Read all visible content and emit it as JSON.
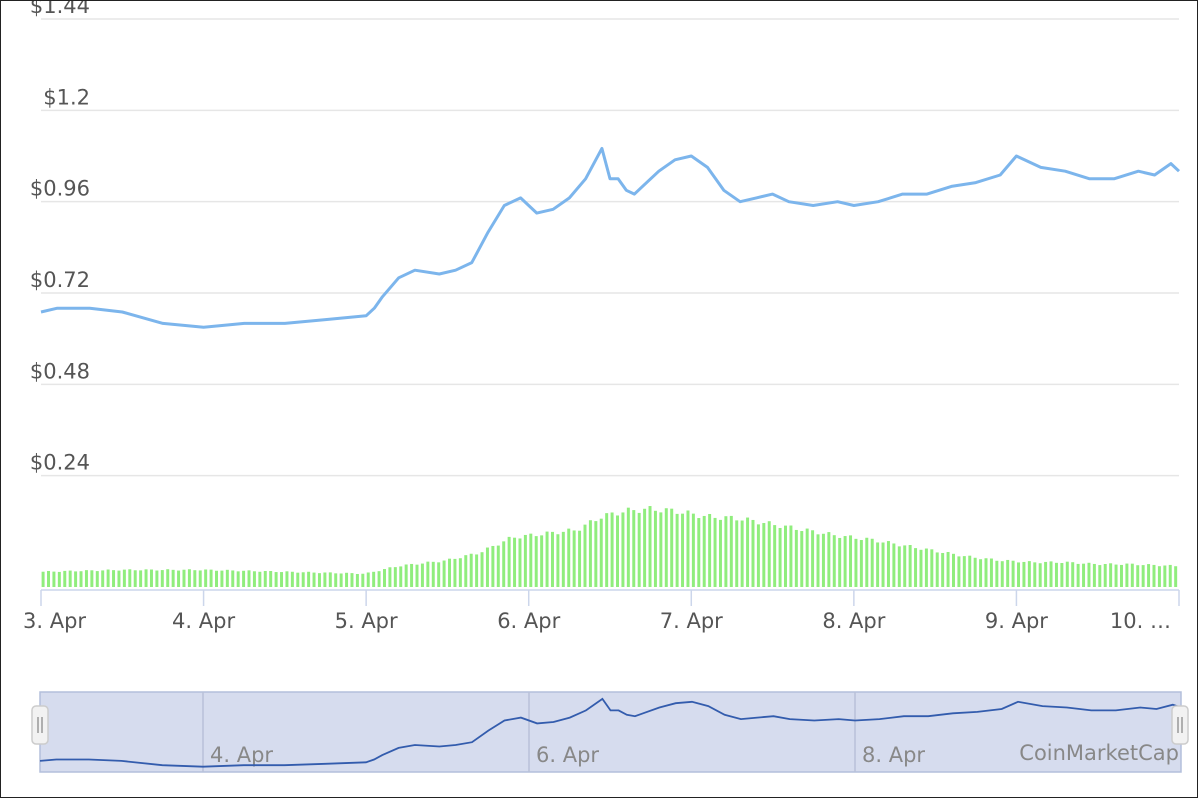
{
  "chart_data": {
    "type": "line",
    "title": "",
    "xlabel": "",
    "ylabel": "",
    "yticks": [
      "$1.44",
      "$1.2",
      "$0.96",
      "$0.72",
      "$0.48",
      "$0.24"
    ],
    "ylim": [
      0,
      1.44
    ],
    "xticks": [
      "3. Apr",
      "4. Apr",
      "5. Apr",
      "6. Apr",
      "7. Apr",
      "8. Apr",
      "9. Apr",
      "10. …"
    ],
    "xlim": [
      3.0,
      10.0
    ],
    "grid": true,
    "series": [
      {
        "kind": "price",
        "color": "#7cb5ec",
        "x": [
          3.0,
          3.1,
          3.3,
          3.5,
          3.75,
          4.0,
          4.25,
          4.5,
          4.75,
          5.0,
          5.05,
          5.1,
          5.2,
          5.3,
          5.45,
          5.55,
          5.65,
          5.75,
          5.85,
          5.95,
          6.05,
          6.15,
          6.25,
          6.35,
          6.45,
          6.5,
          6.55,
          6.6,
          6.65,
          6.7,
          6.8,
          6.9,
          7.0,
          7.1,
          7.2,
          7.3,
          7.4,
          7.5,
          7.6,
          7.75,
          7.9,
          8.0,
          8.15,
          8.3,
          8.45,
          8.6,
          8.75,
          8.9,
          9.0,
          9.15,
          9.3,
          9.45,
          9.6,
          9.75,
          9.85,
          9.95,
          10.0
        ],
        "y": [
          0.67,
          0.68,
          0.68,
          0.67,
          0.64,
          0.63,
          0.64,
          0.64,
          0.65,
          0.66,
          0.68,
          0.71,
          0.76,
          0.78,
          0.77,
          0.78,
          0.8,
          0.88,
          0.95,
          0.97,
          0.93,
          0.94,
          0.97,
          1.02,
          1.1,
          1.02,
          1.02,
          0.99,
          0.98,
          1.0,
          1.04,
          1.07,
          1.08,
          1.05,
          0.99,
          0.96,
          0.97,
          0.98,
          0.96,
          0.95,
          0.96,
          0.95,
          0.96,
          0.98,
          0.98,
          1.0,
          1.01,
          1.03,
          1.08,
          1.05,
          1.04,
          1.02,
          1.02,
          1.04,
          1.03,
          1.06,
          1.04
        ]
      },
      {
        "kind": "volume",
        "color": "#90ed7d",
        "x": [
          3.0,
          3.5,
          4.0,
          4.5,
          5.0,
          5.2,
          5.5,
          5.7,
          5.9,
          6.1,
          6.3,
          6.45,
          6.6,
          6.75,
          6.9,
          7.1,
          7.3,
          7.5,
          7.7,
          7.9,
          8.1,
          8.3,
          8.5,
          8.7,
          8.9,
          9.1,
          9.3,
          9.5,
          9.7,
          10.0
        ],
        "y": [
          0.04,
          0.045,
          0.045,
          0.04,
          0.035,
          0.055,
          0.07,
          0.09,
          0.13,
          0.14,
          0.15,
          0.185,
          0.2,
          0.205,
          0.2,
          0.185,
          0.18,
          0.165,
          0.15,
          0.135,
          0.125,
          0.11,
          0.095,
          0.08,
          0.07,
          0.065,
          0.065,
          0.06,
          0.06,
          0.055
        ]
      }
    ],
    "navigator": {
      "ticks": [
        "4. Apr",
        "6. Apr",
        "8. Apr"
      ],
      "credit": "CoinMarketCap"
    }
  }
}
